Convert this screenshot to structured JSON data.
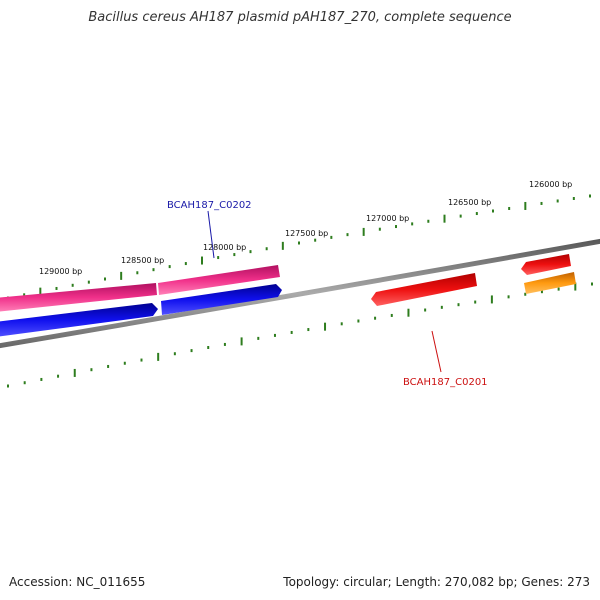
{
  "map": {
    "title": "Bacillus cereus AH187 plasmid pAH187_270, complete sequence",
    "accession_text": "Accession: NC_011655",
    "summary_text": "Topology: circular; Length: 270,082 bp; Genes: 273"
  },
  "ticks": [
    {
      "label": "126000 bp"
    },
    {
      "label": "126500 bp"
    },
    {
      "label": "127000 bp"
    },
    {
      "label": "127500 bp"
    },
    {
      "label": "128000 bp"
    },
    {
      "label": "128500 bp"
    },
    {
      "label": "129000 bp"
    }
  ],
  "genes": {
    "upper": {
      "label": "BCAH187_C0202",
      "color": "#1a1aa8"
    },
    "lower": {
      "label": "BCAH187_C0201",
      "color": "#cc1111"
    }
  },
  "colors": {
    "backbone": "#808080",
    "tick_marks": "#2e7d1e",
    "pink_gene": "#e8207a",
    "blue_gene": "#1010e0",
    "red_gene": "#ee1010",
    "orange_gene": "#ff9a10"
  }
}
